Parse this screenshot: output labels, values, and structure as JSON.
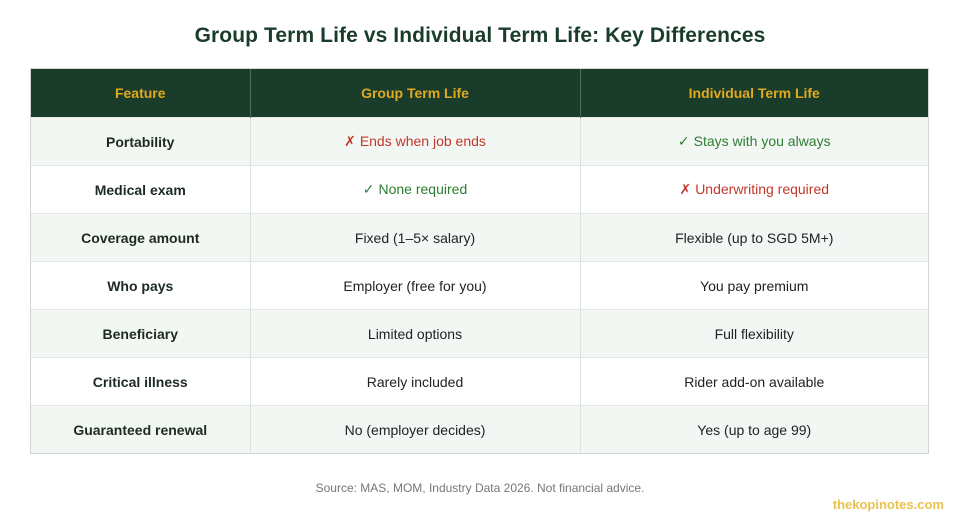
{
  "title": "Group Term Life vs Individual Term Life: Key Differences",
  "table": {
    "headers": [
      "Feature",
      "Group Term Life",
      "Individual Term Life"
    ],
    "rows": [
      {
        "feature": "Portability",
        "group": {
          "mark": "✗",
          "text": "Ends when job ends",
          "status": "negative"
        },
        "individual": {
          "mark": "✓",
          "text": "Stays with you always",
          "status": "positive"
        }
      },
      {
        "feature": "Medical exam",
        "group": {
          "mark": "✓",
          "text": "None required",
          "status": "positive"
        },
        "individual": {
          "mark": "✗",
          "text": "Underwriting required",
          "status": "negative"
        }
      },
      {
        "feature": "Coverage amount",
        "group": {
          "mark": "",
          "text": "Fixed (1–5× salary)",
          "status": "neutral"
        },
        "individual": {
          "mark": "",
          "text": "Flexible (up to SGD 5M+)",
          "status": "neutral"
        }
      },
      {
        "feature": "Who pays",
        "group": {
          "mark": "",
          "text": "Employer (free for you)",
          "status": "neutral"
        },
        "individual": {
          "mark": "",
          "text": "You pay premium",
          "status": "neutral"
        }
      },
      {
        "feature": "Beneficiary",
        "group": {
          "mark": "",
          "text": "Limited options",
          "status": "neutral"
        },
        "individual": {
          "mark": "",
          "text": "Full flexibility",
          "status": "neutral"
        }
      },
      {
        "feature": "Critical illness",
        "group": {
          "mark": "",
          "text": "Rarely included",
          "status": "neutral"
        },
        "individual": {
          "mark": "",
          "text": "Rider add-on available",
          "status": "neutral"
        }
      },
      {
        "feature": "Guaranteed renewal",
        "group": {
          "mark": "",
          "text": "No (employer decides)",
          "status": "neutral"
        },
        "individual": {
          "mark": "",
          "text": "Yes (up to age 99)",
          "status": "neutral"
        }
      }
    ]
  },
  "source": "Source: MAS, MOM, Industry Data 2026. Not financial advice.",
  "watermark": "thekopinotes.com",
  "colors": {
    "header_bg": "#1a3d2b",
    "header_text": "#e0a920",
    "positive": "#2e7d32",
    "negative": "#c0392b",
    "row_alt": "#f3f7f4",
    "watermark": "#e6b830"
  }
}
